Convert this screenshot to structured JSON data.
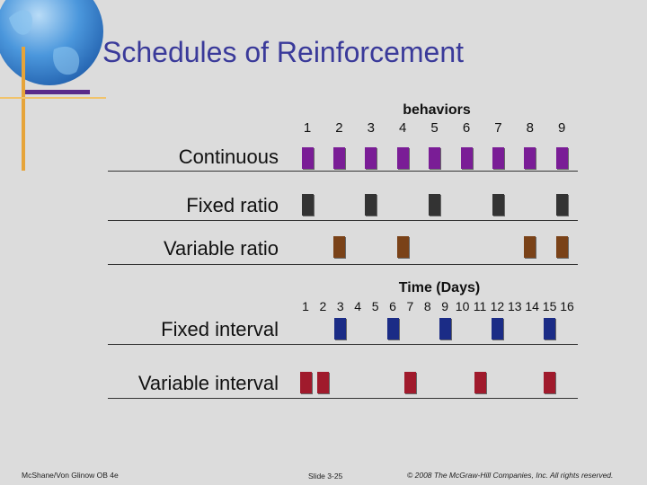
{
  "title": "Schedules of Reinforcement",
  "behaviors_label": "behaviors",
  "behaviors_numbers": [
    "1",
    "2",
    "3",
    "4",
    "5",
    "6",
    "7",
    "8",
    "9"
  ],
  "time_label": "Time (Days)",
  "time_numbers": [
    "1",
    "2",
    "3",
    "4",
    "5",
    "6",
    "7",
    "8",
    "9",
    "10",
    "11",
    "12",
    "13",
    "14",
    "15",
    "16"
  ],
  "rows": [
    {
      "label": "Continuous",
      "color": "#7a1d96",
      "scale": "behaviors",
      "marks": [
        1,
        2,
        3,
        4,
        5,
        6,
        7,
        8,
        9
      ]
    },
    {
      "label": "Fixed ratio",
      "color": "#333333",
      "scale": "behaviors",
      "marks": [
        1,
        3,
        5,
        7,
        9
      ]
    },
    {
      "label": "Variable ratio",
      "color": "#7a4218",
      "scale": "behaviors",
      "marks": [
        2,
        4,
        8,
        9
      ]
    },
    {
      "label": "Fixed interval",
      "color": "#1b2c86",
      "scale": "time",
      "marks": [
        3,
        6,
        9,
        12,
        15
      ]
    },
    {
      "label": "Variable interval",
      "color": "#a01a2c",
      "scale": "time",
      "marks": [
        1,
        2,
        7,
        11,
        15
      ]
    }
  ],
  "footer": {
    "left": "McShane/Von Glinow OB 4e",
    "center": "Slide 3-25",
    "right": "© 2008 The McGraw-Hill Companies, Inc. All rights reserved."
  },
  "colors": {
    "title": "#3a3a9a",
    "globe": "#3f8fd9",
    "purple_bar": "#5a2a8a",
    "yellow_bar": "#e6a43a"
  }
}
